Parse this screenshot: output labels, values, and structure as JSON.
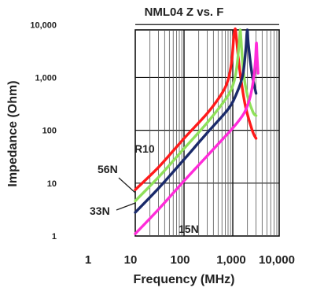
{
  "chart_data": {
    "type": "line",
    "title": "NML04 Z vs. F",
    "xlabel": "Frequency (MHz)",
    "ylabel": "Impedance (Ohm)",
    "x_scale": "log",
    "y_scale": "log",
    "xlim": [
      1,
      10000
    ],
    "ylim": [
      1,
      10000
    ],
    "grid": true,
    "x_ticks": [
      {
        "value": 1,
        "label": "1"
      },
      {
        "value": 10,
        "label": "10"
      },
      {
        "value": 100,
        "label": "100"
      },
      {
        "value": 1000,
        "label": "1,000"
      },
      {
        "value": 10000,
        "label": "10,000"
      }
    ],
    "y_ticks": [
      {
        "value": 1,
        "label": "1"
      },
      {
        "value": 10,
        "label": "10"
      },
      {
        "value": 100,
        "label": "100"
      },
      {
        "value": 1000,
        "label": "1,000"
      },
      {
        "value": 10000,
        "label": "10,000"
      }
    ],
    "series": [
      {
        "name": "R10",
        "color": "#ff1a1a",
        "points": [
          [
            10,
            7.5
          ],
          [
            30,
            20
          ],
          [
            100,
            70
          ],
          [
            300,
            210
          ],
          [
            600,
            500
          ],
          [
            800,
            900
          ],
          [
            950,
            2000
          ],
          [
            1050,
            6000
          ],
          [
            1100,
            12000
          ],
          [
            1140,
            9000
          ],
          [
            1200,
            5000
          ],
          [
            1400,
            1300
          ],
          [
            1800,
            300
          ],
          [
            2500,
            100
          ],
          [
            3000,
            70
          ]
        ]
      },
      {
        "name": "56N",
        "color": "#8fe05a",
        "points": [
          [
            10,
            4.6
          ],
          [
            30,
            13
          ],
          [
            100,
            45
          ],
          [
            300,
            140
          ],
          [
            700,
            380
          ],
          [
            1000,
            700
          ],
          [
            1200,
            1500
          ],
          [
            1350,
            4500
          ],
          [
            1420,
            11000
          ],
          [
            1480,
            5000
          ],
          [
            1650,
            1300
          ],
          [
            2000,
            450
          ],
          [
            2600,
            220
          ],
          [
            3000,
            190
          ]
        ]
      },
      {
        "name": "33N",
        "color": "#1a2a6a",
        "points": [
          [
            10,
            2.8
          ],
          [
            30,
            8
          ],
          [
            100,
            28
          ],
          [
            300,
            90
          ],
          [
            800,
            250
          ],
          [
            1200,
            500
          ],
          [
            1600,
            1100
          ],
          [
            1850,
            3500
          ],
          [
            1980,
            11000
          ],
          [
            2100,
            4000
          ],
          [
            2500,
            1100
          ],
          [
            3000,
            500
          ]
        ]
      },
      {
        "name": "15N",
        "color": "#ff2bd9",
        "points": [
          [
            10,
            1.1
          ],
          [
            30,
            3.2
          ],
          [
            100,
            11
          ],
          [
            300,
            33
          ],
          [
            1000,
            110
          ],
          [
            1700,
            210
          ],
          [
            2200,
            380
          ],
          [
            2600,
            800
          ],
          [
            2900,
            2000
          ],
          [
            3050,
            4500
          ],
          [
            3150,
            2500
          ],
          [
            3300,
            1200
          ]
        ]
      }
    ]
  }
}
